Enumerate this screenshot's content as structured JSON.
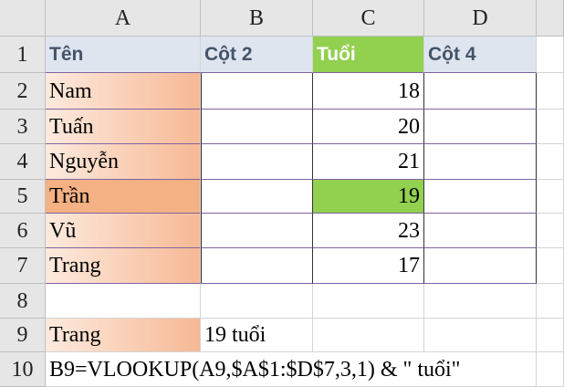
{
  "column_headers": [
    "A",
    "B",
    "C",
    "D"
  ],
  "row_headers": [
    1,
    2,
    3,
    4,
    5,
    6,
    7,
    8,
    9,
    10
  ],
  "table": {
    "header": [
      "Tên",
      "Cột 2",
      "Tuổi",
      "Cột 4"
    ],
    "rows": [
      {
        "name": "Nam",
        "age": 18
      },
      {
        "name": "Tuấn",
        "age": 20
      },
      {
        "name": "Nguyễn",
        "age": 21
      },
      {
        "name": "Trần",
        "age": 19
      },
      {
        "name": "Vũ",
        "age": 23
      },
      {
        "name": "Trang",
        "age": 17
      }
    ]
  },
  "lookup": {
    "input": "Trang",
    "result": "19 tuổi"
  },
  "formula": "B9=VLOOKUP(A9,$A$1:$D$7,3,1) & \" tuổi\""
}
